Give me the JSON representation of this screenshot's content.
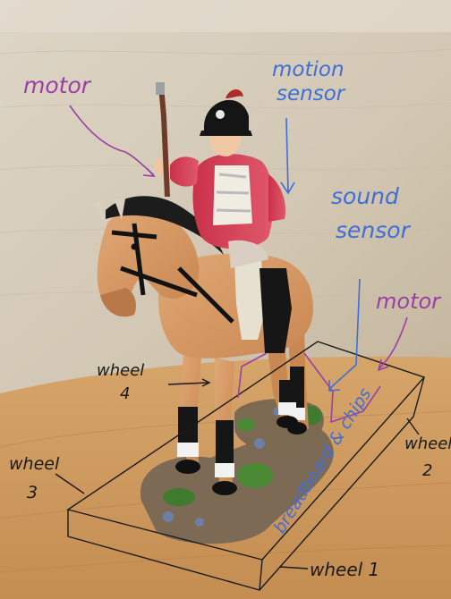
{
  "annotations": {
    "motor_left": "motor",
    "motion_sensor_line1": "motion",
    "motion_sensor_line2": "sensor",
    "sound_sensor_line1": "sound",
    "sound_sensor_line2": "sensor",
    "motor_right": "motor",
    "wheel_4_word": "wheel",
    "wheel_4_num": "4",
    "wheel_2_word": "wheel",
    "wheel_2_num": "2",
    "wheel_3_word": "wheel",
    "wheel_3_num": "3",
    "wheel_1_label": "wheel 1",
    "breadboard_label": "breadboard & chips"
  },
  "colors": {
    "purple_ink": "#9b3fa6",
    "blue_ink": "#3f6ed8",
    "black_ink": "#1a1a1a",
    "wall": "#d6ccbb",
    "table": "#c99a63"
  }
}
